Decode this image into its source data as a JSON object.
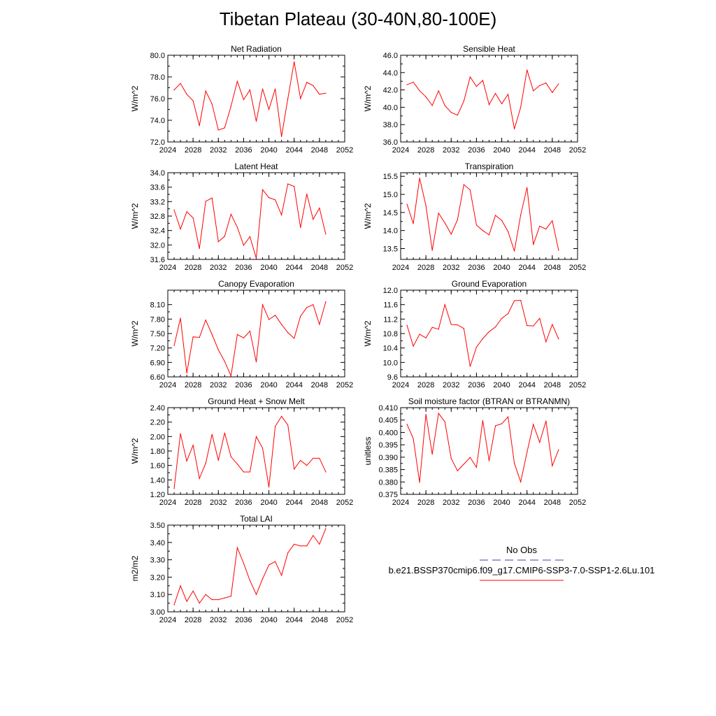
{
  "figure": {
    "title": "Tibetan Plateau (30-40N,80-100E)",
    "legend": {
      "no_obs_label": "No Obs",
      "case_label": "b.e21.BSSP370cmip6.f09_g17.CMIP6-SSP3-7.0-SSP1-2.6Lu.101",
      "no_obs_color": "#4040b0",
      "case_color": "#ff0000"
    }
  },
  "chart_data": [
    {
      "type": "line",
      "title": "Net Radiation",
      "ylabel": "W/m^2",
      "xlim": [
        2024,
        2052
      ],
      "ylim": [
        72.0,
        80.0
      ],
      "xticks": [
        "2024",
        "2028",
        "2032",
        "2036",
        "2040",
        "2044",
        "2048",
        "2052"
      ],
      "yticks": [
        "72.0",
        "74.0",
        "76.0",
        "78.0",
        "80.0"
      ],
      "x": [
        2025,
        2026,
        2027,
        2028,
        2029,
        2030,
        2031,
        2032,
        2033,
        2034,
        2035,
        2036,
        2037,
        2038,
        2039,
        2040,
        2041,
        2042,
        2043,
        2044,
        2045,
        2046,
        2047,
        2048,
        2049
      ],
      "series": [
        {
          "color": "#ff0000",
          "values": [
            76.8,
            77.4,
            76.4,
            75.8,
            73.5,
            76.7,
            75.5,
            73.1,
            73.3,
            75.3,
            77.6,
            75.9,
            76.8,
            73.9,
            76.9,
            75.0,
            76.9,
            72.5,
            76.0,
            79.4,
            76.0,
            77.5,
            77.2,
            76.4,
            76.5
          ]
        }
      ]
    },
    {
      "type": "line",
      "title": "Sensible Heat",
      "ylabel": "W/m^2",
      "xlim": [
        2024,
        2052
      ],
      "ylim": [
        36.0,
        46.0
      ],
      "xticks": [
        "2024",
        "2028",
        "2032",
        "2036",
        "2040",
        "2044",
        "2048",
        "2052"
      ],
      "yticks": [
        "36.0",
        "38.0",
        "40.0",
        "42.0",
        "44.0",
        "46.0"
      ],
      "x": [
        2025,
        2026,
        2027,
        2028,
        2029,
        2030,
        2031,
        2032,
        2033,
        2034,
        2035,
        2036,
        2037,
        2038,
        2039,
        2040,
        2041,
        2042,
        2043,
        2044,
        2045,
        2046,
        2047,
        2048,
        2049
      ],
      "series": [
        {
          "color": "#ff0000",
          "values": [
            42.6,
            42.9,
            41.9,
            41.2,
            40.2,
            41.9,
            40.2,
            39.4,
            39.1,
            40.7,
            43.5,
            42.4,
            43.1,
            40.3,
            41.6,
            40.4,
            41.5,
            37.5,
            40.0,
            44.3,
            41.9,
            42.5,
            42.8,
            41.7,
            42.7
          ]
        }
      ]
    },
    {
      "type": "line",
      "title": "Latent Heat",
      "ylabel": "W/m^2",
      "xlim": [
        2024,
        2052
      ],
      "ylim": [
        31.6,
        34.0
      ],
      "xticks": [
        "2024",
        "2028",
        "2032",
        "2036",
        "2040",
        "2044",
        "2048",
        "2052"
      ],
      "yticks": [
        "31.6",
        "32.0",
        "32.4",
        "32.8",
        "33.2",
        "33.6",
        "34.0"
      ],
      "x": [
        2025,
        2026,
        2027,
        2028,
        2029,
        2030,
        2031,
        2032,
        2033,
        2034,
        2035,
        2036,
        2037,
        2038,
        2039,
        2040,
        2041,
        2042,
        2043,
        2044,
        2045,
        2046,
        2047,
        2048,
        2049
      ],
      "series": [
        {
          "color": "#ff0000",
          "values": [
            32.97,
            32.44,
            32.92,
            32.75,
            31.9,
            33.21,
            33.3,
            32.09,
            32.24,
            32.85,
            32.49,
            31.99,
            32.23,
            31.63,
            33.53,
            33.31,
            33.25,
            32.83,
            33.69,
            33.62,
            32.48,
            33.41,
            32.71,
            33.02,
            32.3
          ]
        }
      ]
    },
    {
      "type": "line",
      "title": "Transpiration",
      "ylabel": "W/m^2",
      "xlim": [
        2024,
        2052
      ],
      "ylim": [
        13.2,
        15.6
      ],
      "xticks": [
        "2024",
        "2028",
        "2032",
        "2036",
        "2040",
        "2044",
        "2048",
        "2052"
      ],
      "yticks": [
        "13.5",
        "14.0",
        "14.5",
        "15.0",
        "15.5"
      ],
      "x": [
        2025,
        2026,
        2027,
        2028,
        2029,
        2030,
        2031,
        2032,
        2033,
        2034,
        2035,
        2036,
        2037,
        2038,
        2039,
        2040,
        2041,
        2042,
        2043,
        2044,
        2045,
        2046,
        2047,
        2048,
        2049
      ],
      "series": [
        {
          "color": "#ff0000",
          "values": [
            14.73,
            14.19,
            15.45,
            14.69,
            13.45,
            14.48,
            14.21,
            13.9,
            14.3,
            15.27,
            15.12,
            14.15,
            14.0,
            13.88,
            14.42,
            14.28,
            13.97,
            13.43,
            14.43,
            15.19,
            13.61,
            14.12,
            14.04,
            14.27,
            13.45
          ]
        }
      ]
    },
    {
      "type": "line",
      "title": "Canopy Evaporation",
      "ylabel": "W/m^2",
      "xlim": [
        2024,
        2052
      ],
      "ylim": [
        6.6,
        8.4
      ],
      "xticks": [
        "2024",
        "2028",
        "2032",
        "2036",
        "2040",
        "2044",
        "2048",
        "2052"
      ],
      "yticks": [
        "6.60",
        "6.90",
        "7.20",
        "7.50",
        "7.80",
        "8.10"
      ],
      "x": [
        2025,
        2026,
        2027,
        2028,
        2029,
        2030,
        2031,
        2032,
        2033,
        2034,
        2035,
        2036,
        2037,
        2038,
        2039,
        2040,
        2041,
        2042,
        2043,
        2044,
        2045,
        2046,
        2047,
        2048,
        2049
      ],
      "series": [
        {
          "color": "#ff0000",
          "values": [
            7.25,
            7.82,
            6.68,
            7.43,
            7.42,
            7.78,
            7.48,
            7.16,
            6.92,
            6.62,
            7.48,
            7.41,
            7.55,
            6.91,
            8.1,
            7.79,
            7.88,
            7.69,
            7.52,
            7.4,
            7.86,
            8.04,
            8.1,
            7.69,
            8.16
          ]
        }
      ]
    },
    {
      "type": "line",
      "title": "Ground Evaporation",
      "ylabel": "W/m^2",
      "xlim": [
        2024,
        2052
      ],
      "ylim": [
        9.6,
        12.0
      ],
      "xticks": [
        "2024",
        "2028",
        "2032",
        "2036",
        "2040",
        "2044",
        "2048",
        "2052"
      ],
      "yticks": [
        "9.6",
        "10.0",
        "10.4",
        "10.8",
        "11.2",
        "11.6",
        "12.0"
      ],
      "x": [
        2025,
        2026,
        2027,
        2028,
        2029,
        2030,
        2031,
        2032,
        2033,
        2034,
        2035,
        2036,
        2037,
        2038,
        2039,
        2040,
        2041,
        2042,
        2043,
        2044,
        2045,
        2046,
        2047,
        2048,
        2049
      ],
      "series": [
        {
          "color": "#ff0000",
          "values": [
            11.03,
            10.45,
            10.78,
            10.68,
            10.97,
            10.92,
            11.6,
            11.05,
            11.04,
            10.94,
            9.89,
            10.42,
            10.66,
            10.85,
            10.98,
            11.22,
            11.35,
            11.71,
            11.72,
            11.02,
            11.01,
            11.22,
            10.57,
            11.05,
            10.65
          ]
        }
      ]
    },
    {
      "type": "line",
      "title": "Ground Heat + Snow Melt",
      "ylabel": "W/m^2",
      "xlim": [
        2024,
        2052
      ],
      "ylim": [
        1.2,
        2.4
      ],
      "xticks": [
        "2024",
        "2028",
        "2032",
        "2036",
        "2040",
        "2044",
        "2048",
        "2052"
      ],
      "yticks": [
        "1.20",
        "1.40",
        "1.60",
        "1.80",
        "2.00",
        "2.20",
        "2.40"
      ],
      "x": [
        2025,
        2026,
        2027,
        2028,
        2029,
        2030,
        2031,
        2032,
        2033,
        2034,
        2035,
        2036,
        2037,
        2038,
        2039,
        2040,
        2041,
        2042,
        2043,
        2044,
        2045,
        2046,
        2047,
        2048,
        2049
      ],
      "series": [
        {
          "color": "#ff0000",
          "values": [
            1.28,
            2.04,
            1.66,
            1.88,
            1.42,
            1.63,
            2.03,
            1.67,
            2.05,
            1.72,
            1.62,
            1.51,
            1.51,
            2.0,
            1.84,
            1.3,
            2.14,
            2.28,
            2.16,
            1.55,
            1.67,
            1.6,
            1.7,
            1.7,
            1.51
          ]
        }
      ]
    },
    {
      "type": "line",
      "title": "Soil moisture factor (BTRAN or BTRANMN)",
      "ylabel": "unitless",
      "xlim": [
        2024,
        2052
      ],
      "ylim": [
        0.375,
        0.41
      ],
      "xticks": [
        "2024",
        "2028",
        "2032",
        "2036",
        "2040",
        "2044",
        "2048",
        "2052"
      ],
      "yticks": [
        "0.375",
        "0.380",
        "0.385",
        "0.390",
        "0.395",
        "0.400",
        "0.405",
        "0.410"
      ],
      "x": [
        2025,
        2026,
        2027,
        2028,
        2029,
        2030,
        2031,
        2032,
        2033,
        2034,
        2035,
        2036,
        2037,
        2038,
        2039,
        2040,
        2041,
        2042,
        2043,
        2044,
        2045,
        2046,
        2047,
        2048,
        2049
      ],
      "series": [
        {
          "color": "#ff0000",
          "values": [
            0.4033,
            0.3975,
            0.3798,
            0.4073,
            0.3912,
            0.4077,
            0.4043,
            0.3895,
            0.3845,
            0.3872,
            0.3899,
            0.3859,
            0.4048,
            0.3885,
            0.4027,
            0.4035,
            0.4063,
            0.3875,
            0.38,
            0.392,
            0.4032,
            0.396,
            0.4046,
            0.3865,
            0.393
          ]
        }
      ]
    },
    {
      "type": "line",
      "title": "Total LAI",
      "ylabel": "m2/m2",
      "xlim": [
        2024,
        2052
      ],
      "ylim": [
        3.0,
        3.5
      ],
      "xticks": [
        "2024",
        "2028",
        "2032",
        "2036",
        "2040",
        "2044",
        "2048",
        "2052"
      ],
      "yticks": [
        "3.00",
        "3.10",
        "3.20",
        "3.30",
        "3.40",
        "3.50"
      ],
      "x": [
        2025,
        2026,
        2027,
        2028,
        2029,
        2030,
        2031,
        2032,
        2033,
        2034,
        2035,
        2036,
        2037,
        2038,
        2039,
        2040,
        2041,
        2042,
        2043,
        2044,
        2045,
        2046,
        2047,
        2048,
        2049
      ],
      "series": [
        {
          "color": "#ff0000",
          "values": [
            3.04,
            3.15,
            3.06,
            3.12,
            3.05,
            3.1,
            3.07,
            3.07,
            3.08,
            3.09,
            3.37,
            3.28,
            3.18,
            3.1,
            3.19,
            3.27,
            3.29,
            3.21,
            3.34,
            3.39,
            3.38,
            3.38,
            3.44,
            3.39,
            3.48
          ]
        }
      ]
    }
  ]
}
